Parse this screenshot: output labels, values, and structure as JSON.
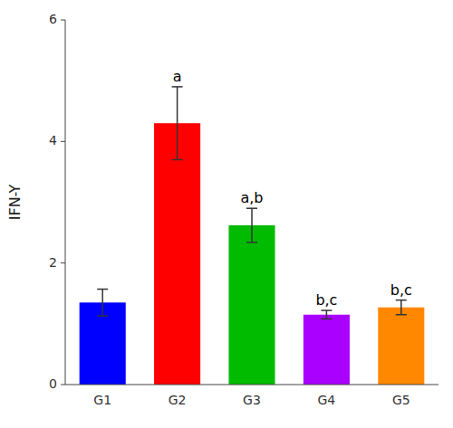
{
  "chart_data": {
    "type": "bar",
    "categories": [
      "G1",
      "G2",
      "G3",
      "G4",
      "G5"
    ],
    "values": [
      1.35,
      4.3,
      2.62,
      1.15,
      1.27
    ],
    "errors": [
      0.22,
      0.6,
      0.28,
      0.07,
      0.12
    ],
    "colors": [
      "#0000ff",
      "#ff0000",
      "#00bb00",
      "#aa00ff",
      "#ff8800"
    ],
    "annotations": [
      null,
      "a",
      "a,b",
      "b,c",
      "b,c"
    ],
    "ylabel": "IFN-Y",
    "ylim": [
      0,
      6
    ],
    "yticks": [
      0,
      2,
      4,
      6
    ],
    "grid": false
  }
}
